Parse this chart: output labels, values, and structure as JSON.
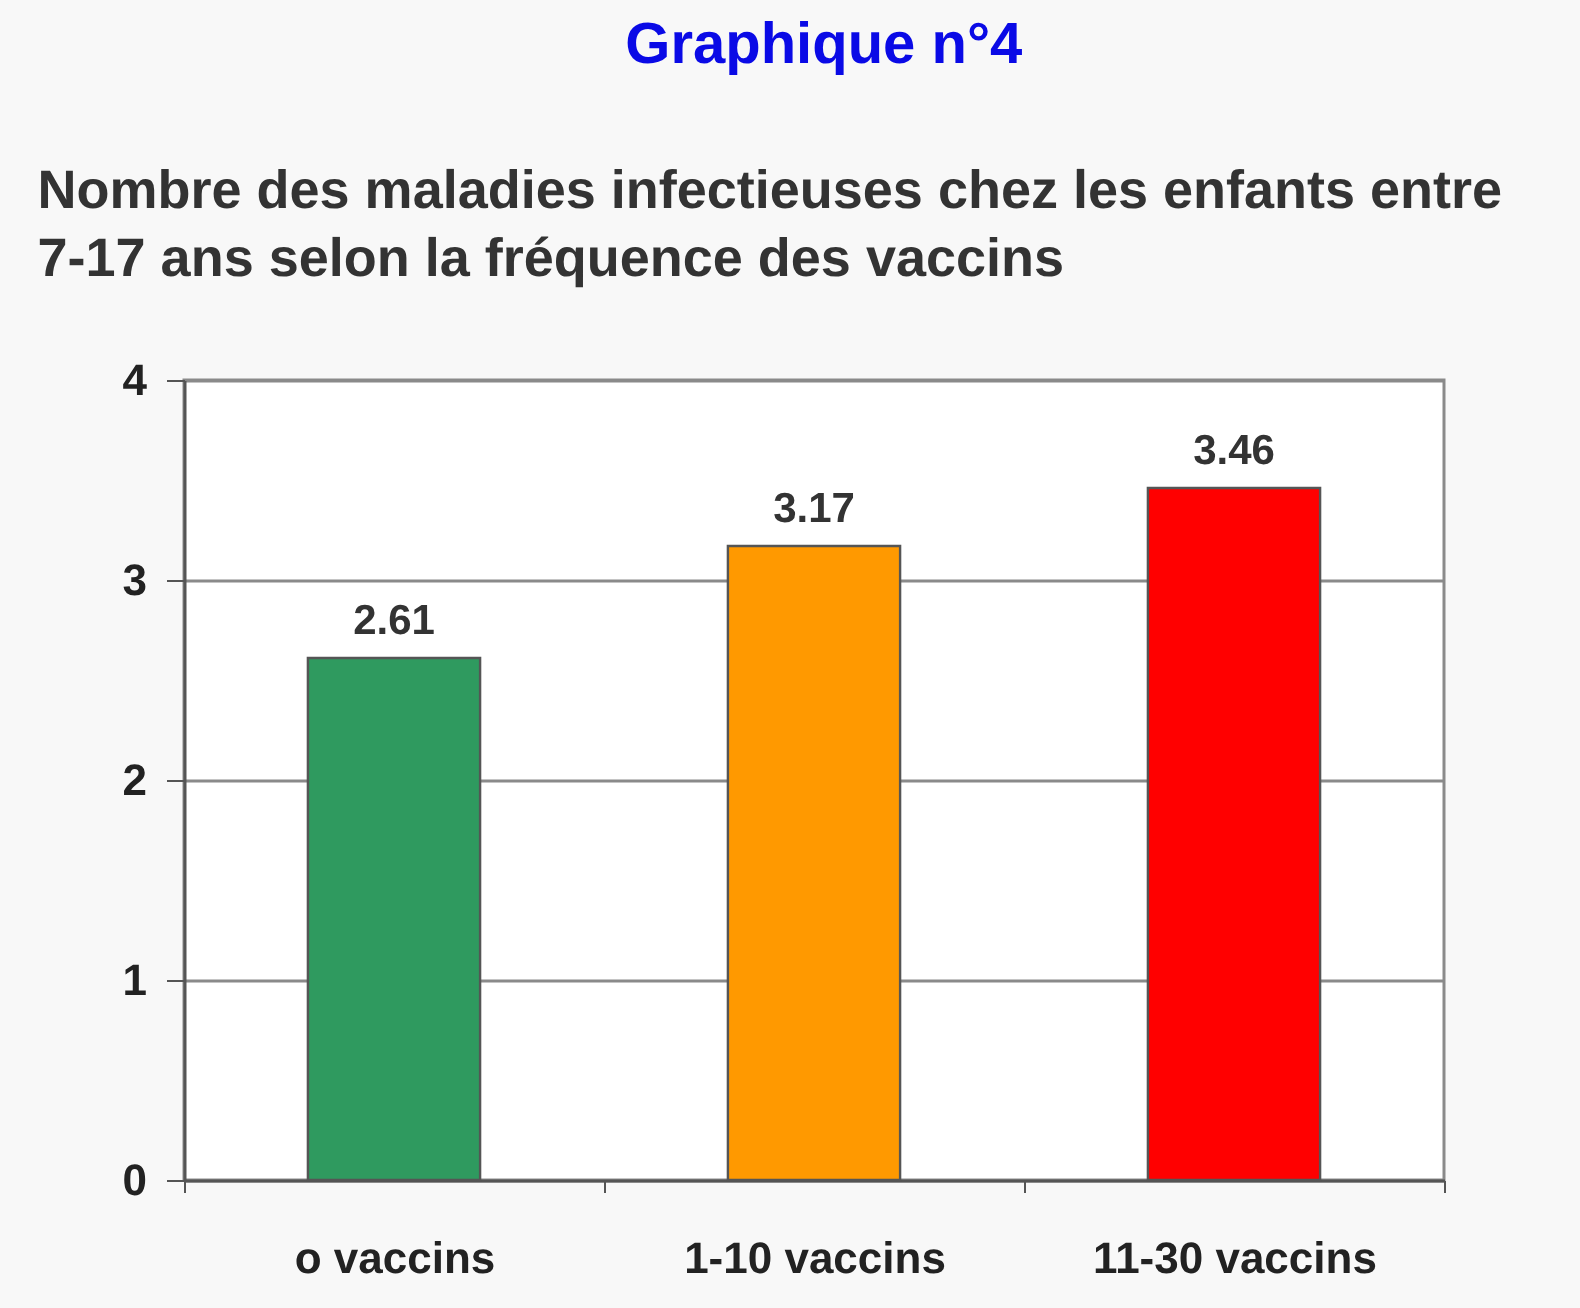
{
  "chart_data": {
    "type": "bar",
    "title": "Graphique n°4",
    "subtitle": "Nombre des maladies infectieuses chez les enfants entre 7-17 ans selon la fréquence des vaccins",
    "categories": [
      "o vaccins",
      "1-10 vaccins",
      "11-30 vaccins"
    ],
    "values": [
      2.61,
      3.17,
      3.46
    ],
    "colors": [
      "#2f9a5f",
      "#ff9900",
      "#ff0000"
    ],
    "ylim": [
      0,
      4
    ],
    "yticks": [
      0,
      1,
      2,
      3,
      4
    ],
    "grid": "y",
    "data_labels": true
  }
}
